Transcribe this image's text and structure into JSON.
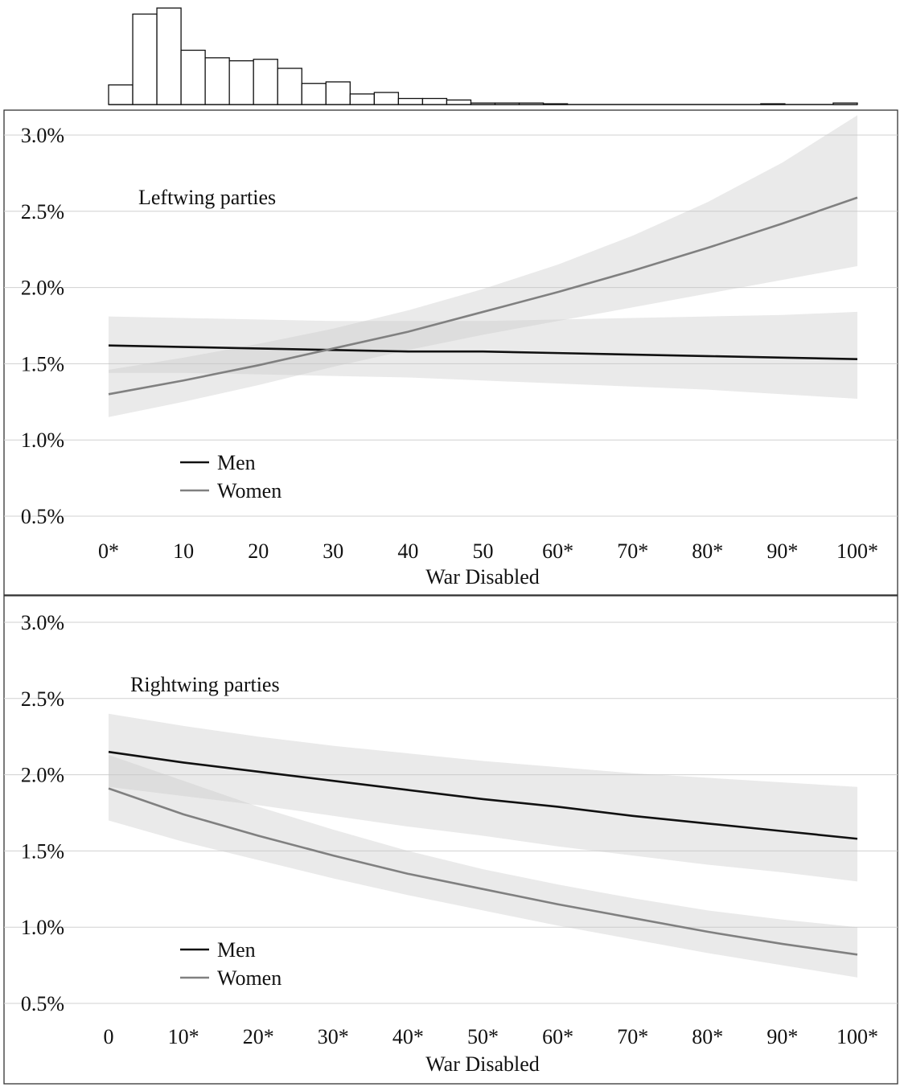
{
  "histogram": {
    "x_range": [
      0,
      100
    ],
    "bin_width": 3.33,
    "counts": [
      13,
      60,
      64,
      36,
      31,
      29,
      30,
      24,
      14,
      15,
      7,
      8,
      4,
      4,
      3,
      1,
      1,
      1,
      0.5,
      0,
      0,
      0,
      0,
      0,
      0,
      0,
      0,
      0.5,
      0,
      0,
      1
    ]
  },
  "chart_data": [
    {
      "type": "line",
      "title": "Leftwing parties",
      "xlabel": "War Disabled",
      "ylabel": "",
      "x_tick_labels": [
        "0*",
        "10",
        "20",
        "30",
        "40",
        "50",
        "60*",
        "70*",
        "80*",
        "90*",
        "100*"
      ],
      "x_ticks": [
        0,
        10,
        20,
        30,
        40,
        50,
        60,
        70,
        80,
        90,
        100
      ],
      "y_tick_labels": [
        "0.5%",
        "1.0%",
        "1.5%",
        "2.0%",
        "2.5%",
        "3.0%"
      ],
      "y_ticks": [
        0.5,
        1.0,
        1.5,
        2.0,
        2.5,
        3.0
      ],
      "xlim": [
        0,
        100
      ],
      "ylim": [
        0.5,
        3.0
      ],
      "grid": "horizontal",
      "legend_position": "bottom-left",
      "series": [
        {
          "name": "Men",
          "color": "#111111",
          "x": [
            0,
            10,
            20,
            30,
            40,
            50,
            60,
            70,
            80,
            90,
            100
          ],
          "y": [
            1.62,
            1.61,
            1.6,
            1.59,
            1.58,
            1.58,
            1.57,
            1.56,
            1.55,
            1.54,
            1.53
          ],
          "lower": [
            1.44,
            1.44,
            1.43,
            1.42,
            1.41,
            1.39,
            1.37,
            1.35,
            1.33,
            1.3,
            1.27
          ],
          "upper": [
            1.81,
            1.8,
            1.79,
            1.78,
            1.78,
            1.78,
            1.79,
            1.8,
            1.81,
            1.82,
            1.84
          ]
        },
        {
          "name": "Women",
          "color": "#808080",
          "x": [
            0,
            10,
            20,
            30,
            40,
            50,
            60,
            70,
            80,
            90,
            100
          ],
          "y": [
            1.3,
            1.39,
            1.49,
            1.6,
            1.71,
            1.84,
            1.97,
            2.11,
            2.26,
            2.42,
            2.59
          ],
          "lower": [
            1.15,
            1.25,
            1.36,
            1.48,
            1.59,
            1.69,
            1.78,
            1.87,
            1.96,
            2.05,
            2.14
          ],
          "upper": [
            1.46,
            1.54,
            1.63,
            1.73,
            1.85,
            1.99,
            2.15,
            2.34,
            2.56,
            2.82,
            3.13
          ]
        }
      ]
    },
    {
      "type": "line",
      "title": "Rightwing parties",
      "xlabel": "War Disabled",
      "ylabel": "",
      "x_tick_labels": [
        "0",
        "10*",
        "20*",
        "30*",
        "40*",
        "50*",
        "60*",
        "70*",
        "80*",
        "90*",
        "100*"
      ],
      "x_ticks": [
        0,
        10,
        20,
        30,
        40,
        50,
        60,
        70,
        80,
        90,
        100
      ],
      "y_tick_labels": [
        "0.5%",
        "1.0%",
        "1.5%",
        "2.0%",
        "2.5%",
        "3.0%"
      ],
      "y_ticks": [
        0.5,
        1.0,
        1.5,
        2.0,
        2.5,
        3.0
      ],
      "xlim": [
        0,
        100
      ],
      "ylim": [
        0.5,
        3.0
      ],
      "grid": "horizontal",
      "legend_position": "bottom-left",
      "series": [
        {
          "name": "Men",
          "color": "#111111",
          "x": [
            0,
            10,
            20,
            30,
            40,
            50,
            60,
            70,
            80,
            90,
            100
          ],
          "y": [
            2.15,
            2.08,
            2.02,
            1.96,
            1.9,
            1.84,
            1.79,
            1.73,
            1.68,
            1.63,
            1.58
          ],
          "lower": [
            1.92,
            1.86,
            1.8,
            1.73,
            1.66,
            1.6,
            1.53,
            1.47,
            1.41,
            1.36,
            1.3
          ],
          "upper": [
            2.4,
            2.32,
            2.25,
            2.19,
            2.14,
            2.09,
            2.05,
            2.01,
            1.98,
            1.95,
            1.92
          ]
        },
        {
          "name": "Women",
          "color": "#808080",
          "x": [
            0,
            10,
            20,
            30,
            40,
            50,
            60,
            70,
            80,
            90,
            100
          ],
          "y": [
            1.91,
            1.74,
            1.6,
            1.47,
            1.35,
            1.25,
            1.15,
            1.06,
            0.97,
            0.89,
            0.82
          ],
          "lower": [
            1.7,
            1.56,
            1.44,
            1.32,
            1.21,
            1.11,
            1.01,
            0.92,
            0.83,
            0.75,
            0.67
          ],
          "upper": [
            2.13,
            1.96,
            1.79,
            1.64,
            1.5,
            1.38,
            1.28,
            1.19,
            1.11,
            1.05,
            1.0
          ]
        }
      ]
    }
  ]
}
